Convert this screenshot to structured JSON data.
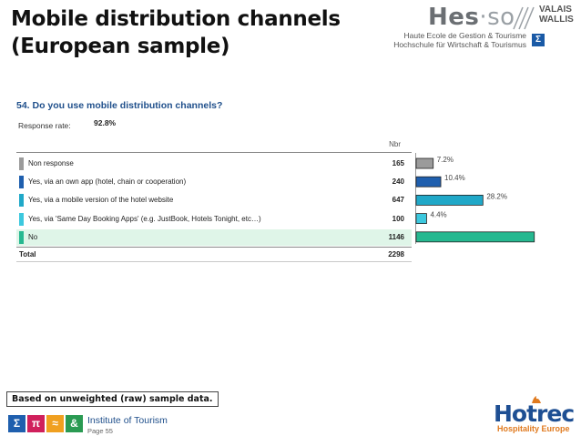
{
  "slide": {
    "title_line1": "Mobile distribution channels",
    "title_line2": "(European sample)"
  },
  "logo_hes": {
    "mark": "Hes",
    "mark_suffix": "·so",
    "valais_line1": "VALAIS",
    "valais_line2": "WALLIS",
    "sub_line1": "Haute Ecole de Gestion & Tourisme",
    "sub_line2": "Hochschule für Wirtschaft & Tourismus",
    "sigma": "Σ"
  },
  "survey": {
    "question": "54. Do you use mobile distribution channels?",
    "response_rate_label": "Response rate:",
    "response_rate_value": "92.8%",
    "column_header": "Nbr",
    "total_label": "Total",
    "total_value": "2298"
  },
  "chart_data": {
    "type": "bar",
    "orientation": "horizontal",
    "categories": [
      "Non response",
      "Yes, via an own app (hotel, chain or cooperation)",
      "Yes, via a mobile version of the hotel website",
      "Yes, via 'Same Day Booking Apps' (e.g. JustBook, Hotels Tonight, etc…)",
      "No"
    ],
    "counts": [
      "165",
      "240",
      "647",
      "100",
      "1146"
    ],
    "values": [
      7.2,
      10.4,
      28.2,
      4.4,
      49.9
    ],
    "value_labels": [
      "7.2%",
      "10.4%",
      "28.2%",
      "4.4%",
      ""
    ],
    "colors": [
      "#9b9b9b",
      "#1f5fae",
      "#20a8c8",
      "#3cc8de",
      "#26b890"
    ],
    "label_marker_colors": [
      "#9b9b9b",
      "#1f5fae",
      "#20a8c8",
      "#3cc8de",
      "#26b890"
    ],
    "highlight_row_color": "#dff5e8",
    "xlim": [
      0,
      50
    ]
  },
  "footer": {
    "note": "Based on unweighted (raw) sample data.",
    "icons": [
      {
        "name": "sigma-icon",
        "glyph": "Σ",
        "color": "#1f5fae"
      },
      {
        "name": "pi-icon",
        "glyph": "π",
        "color": "#d0205c"
      },
      {
        "name": "approx-icon",
        "glyph": "≈",
        "color": "#f0a020"
      },
      {
        "name": "ampersand-icon",
        "glyph": "&",
        "color": "#2a9a52"
      }
    ],
    "institute": "Institute of Tourism",
    "page": "Page 55"
  },
  "hotrec": {
    "word": "Hotrec",
    "tagline": "Hospitality Europe"
  }
}
